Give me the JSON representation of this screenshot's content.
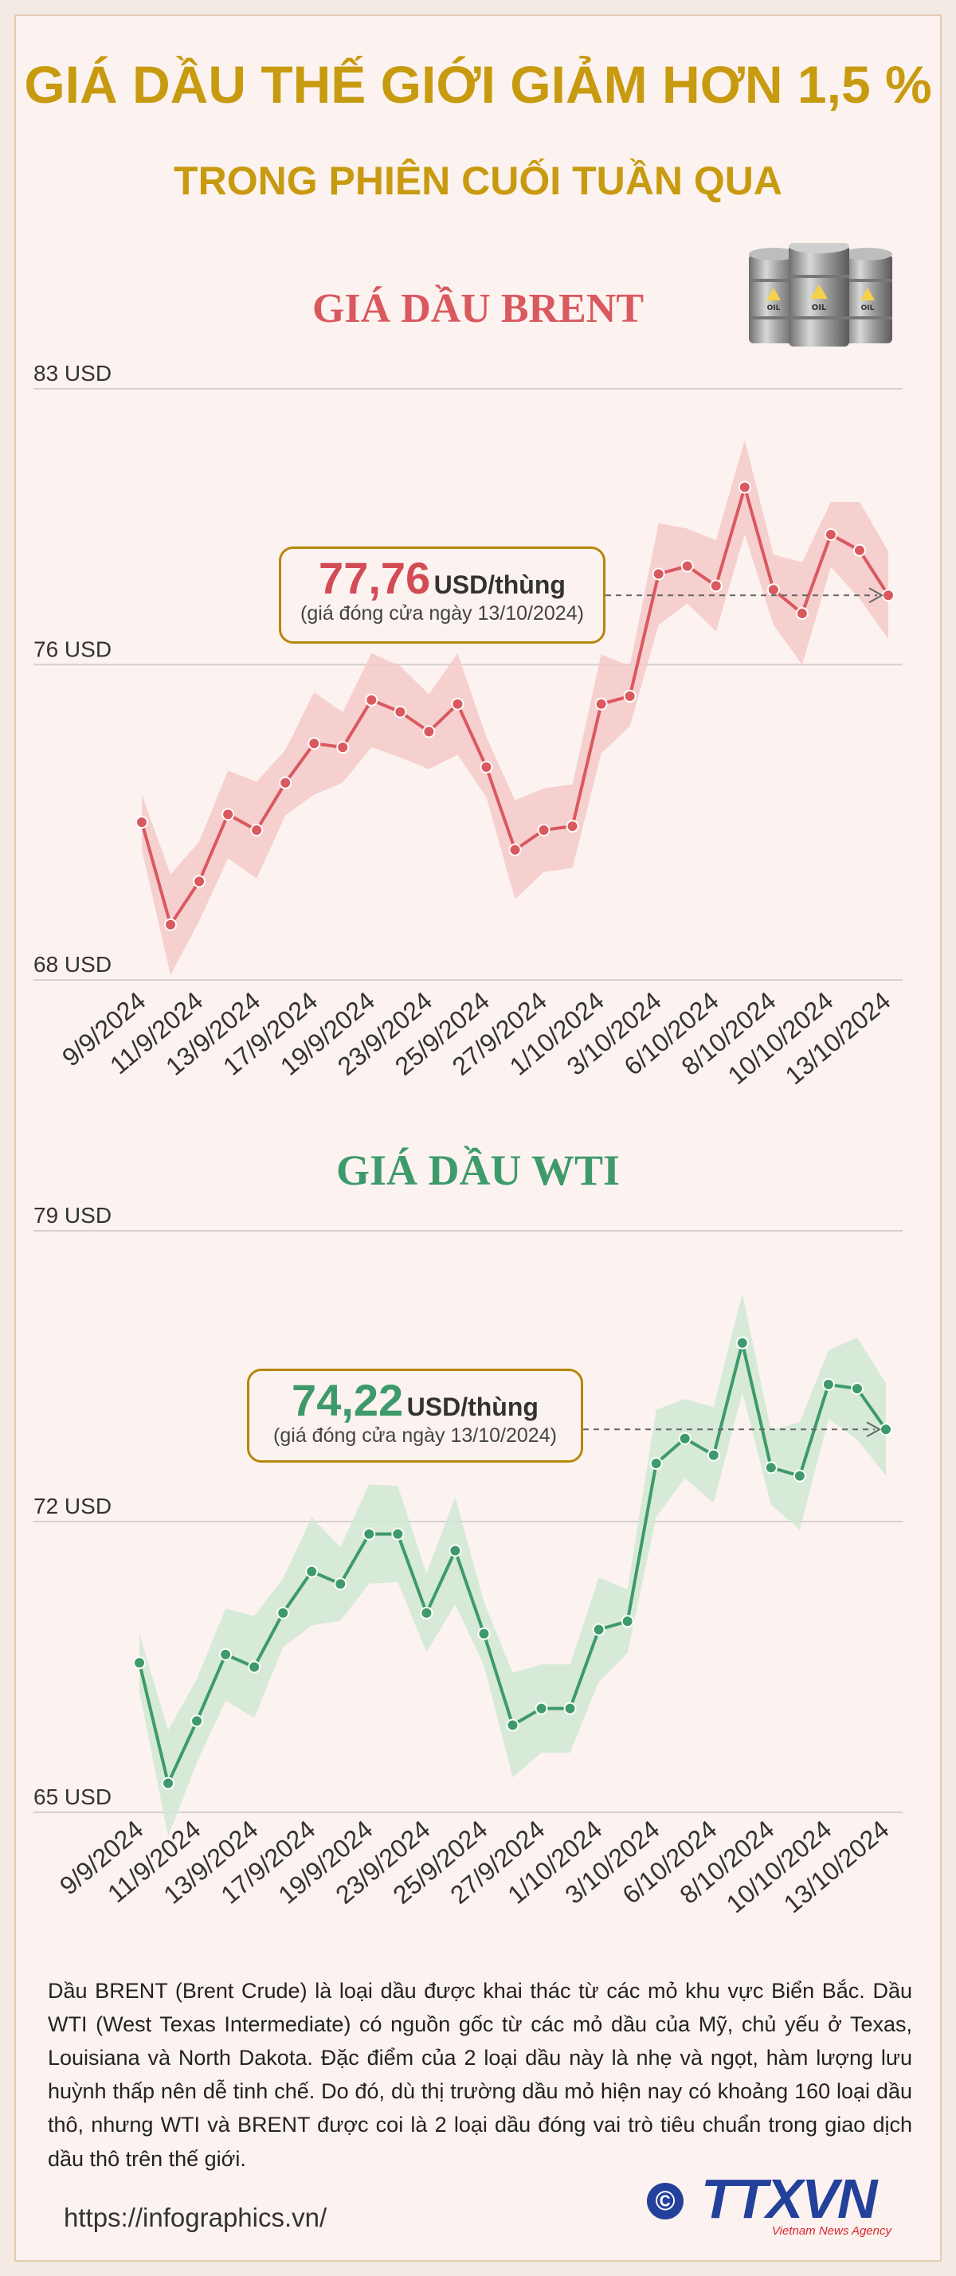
{
  "header": {
    "title_line1": "GIÁ DẦU THẾ GIỚI GIẢM HƠN 1,5 %",
    "title_line2": "TRONG PHIÊN CUỐI TUẦN QUA"
  },
  "chart_data": [
    {
      "type": "line",
      "title": "GIÁ DẦU BRENT",
      "color": "#d9595f",
      "band_color": "#f4c9c9",
      "ytick_labels": [
        "83 USD",
        "76 USD",
        "68 USD"
      ],
      "yticks": [
        83,
        76,
        68
      ],
      "ylim": [
        68,
        83
      ],
      "xtick_labels": [
        "9/9/2024",
        "11/9/2024",
        "13/9/2024",
        "17/9/2024",
        "19/9/2024",
        "23/9/2024",
        "25/9/2024",
        "27/9/2024",
        "1/10/2024",
        "3/10/2024",
        "6/10/2024",
        "8/10/2024",
        "10/10/2024",
        "13/10/2024"
      ],
      "series": [
        {
          "values": [
            72.0,
            69.4,
            70.5,
            72.2,
            71.8,
            73.0,
            74.0,
            73.9,
            75.1,
            74.8,
            74.3,
            75.0,
            73.4,
            71.3,
            71.8,
            71.9,
            75.0,
            75.2,
            78.3,
            78.5,
            78.0,
            80.5,
            77.9,
            77.3,
            79.3,
            78.9,
            77.76
          ]
        }
      ],
      "annotation": {
        "value": "77,76",
        "unit": "USD/thùng",
        "note": "(giá đóng cửa ngày 13/10/2024)"
      }
    },
    {
      "type": "line",
      "title": "GIÁ DẦU WTI",
      "color": "#3e9a6a",
      "band_color": "#d0e8d4",
      "ytick_labels": [
        "79 USD",
        "72 USD",
        "65 USD"
      ],
      "yticks": [
        79,
        72,
        65
      ],
      "ylim": [
        65,
        79
      ],
      "xtick_labels": [
        "9/9/2024",
        "11/9/2024",
        "13/9/2024",
        "17/9/2024",
        "19/9/2024",
        "23/9/2024",
        "25/9/2024",
        "27/9/2024",
        "1/10/2024",
        "3/10/2024",
        "6/10/2024",
        "8/10/2024",
        "10/10/2024",
        "13/10/2024"
      ],
      "series": [
        {
          "values": [
            68.6,
            65.7,
            67.2,
            68.8,
            68.5,
            69.8,
            70.8,
            70.5,
            71.7,
            71.7,
            69.8,
            71.3,
            69.3,
            67.1,
            67.5,
            67.5,
            69.4,
            69.6,
            73.4,
            74.0,
            73.6,
            76.3,
            73.3,
            73.1,
            75.3,
            75.2,
            74.22
          ]
        }
      ],
      "annotation": {
        "value": "74,22",
        "unit": "USD/thùng",
        "note": "(giá đóng cửa ngày 13/10/2024)"
      }
    }
  ],
  "description": "Dầu BRENT (Brent Crude) là loại dầu được khai thác từ các mỏ khu vực Biển Bắc. Dầu WTI (West Texas Intermediate) có nguồn gốc từ các mỏ dầu của Mỹ, chủ yếu ở Texas, Louisiana và North Dakota. Đặc điểm của 2 loại dầu này là nhẹ  và ngọt, hàm lượng lưu huỳnh thấp nên dễ tinh chế. Do đó, dù thị trường dầu mỏ hiện nay có khoảng 160 loại dầu thô, nhưng WTI và BRENT được coi là 2 loại dầu đóng vai trò tiêu chuẩn trong giao dịch dầu thô trên thế giới.",
  "footer": {
    "url": "https://infographics.vn/",
    "copyright_symbol": "©",
    "logo_text": "TTXVN",
    "logo_sub": "Vietnam News Agency"
  },
  "barrels": {
    "label": "OIL",
    "icon": "oil-barrel-icon"
  }
}
